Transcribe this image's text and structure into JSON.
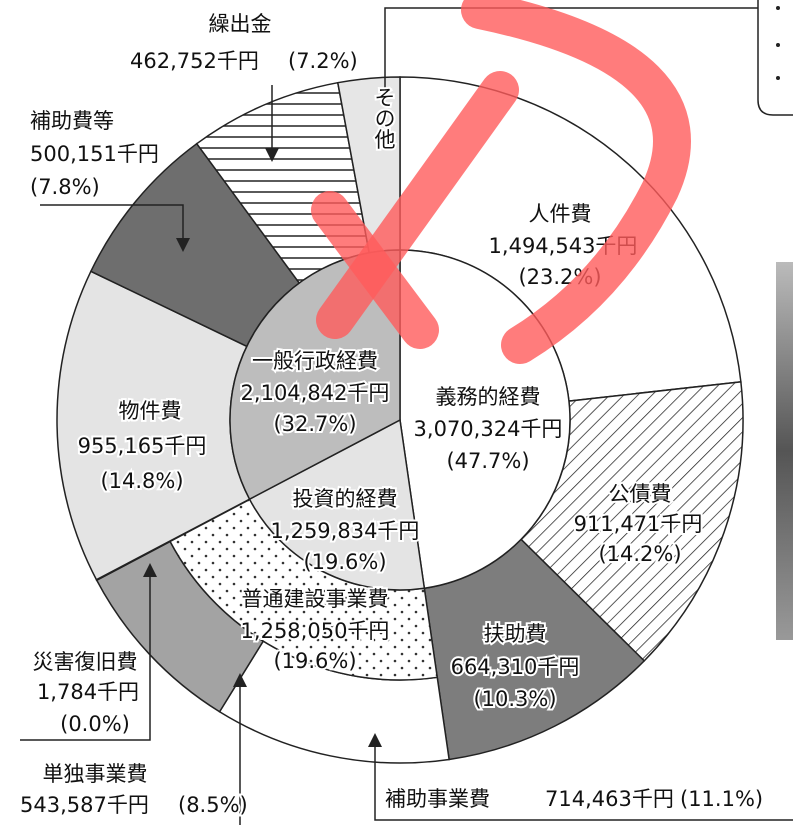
{
  "chart_data": {
    "type": "sunburst",
    "inner": [
      {
        "name": "義務的経費",
        "value": 3070324,
        "value_label": "3,070,324千円",
        "percent_label": "(47.7%)",
        "color": "#ffffff"
      },
      {
        "name": "投資的経費",
        "value": 1259834,
        "value_label": "1,259,834千円",
        "percent_label": "(19.6%)",
        "color": "#e4e4e4"
      },
      {
        "name": "一般行政経費",
        "value": 2104842,
        "value_label": "2,104,842千円",
        "percent_label": "(32.7%)",
        "color": "#bdbdbd"
      }
    ],
    "middle": [
      {
        "name": "普通建設事業費",
        "value": 1258050,
        "value_label": "1,258,050千円",
        "percent_label": "(19.6%)",
        "color": "#ffffff",
        "pattern": "dots",
        "parent": 1
      }
    ],
    "outer": [
      {
        "name": "人件費",
        "value": 1494543,
        "value_label": "1,494,543千円",
        "percent_label": "(23.2%)",
        "color": "#ffffff"
      },
      {
        "name": "公債費",
        "value": 911471,
        "value_label": "911,471千円",
        "percent_label": "(14.2%)",
        "color": "#ffffff",
        "pattern": "hatch"
      },
      {
        "name": "扶助費",
        "value": 664310,
        "value_label": "664,310千円",
        "percent_label": "(10.3%)",
        "color": "#7d7d7d"
      },
      {
        "name": "補助事業費",
        "value": 714463,
        "value_label": "714,463千円",
        "percent_label": "(11.1%)",
        "color": "#ffffff",
        "in_middle": true
      },
      {
        "name": "単独事業費",
        "value": 543587,
        "value_label": "543,587千円",
        "percent_label": "(8.5%)",
        "color": "#a3a3a3",
        "in_middle": true
      },
      {
        "name": "災害復旧費",
        "value": 1784,
        "value_label": "1,784千円",
        "percent_label": "(0.0%)",
        "color": "#ffffff"
      },
      {
        "name": "物件費",
        "value": 955165,
        "value_label": "955,165千円",
        "percent_label": "(14.8%)",
        "color": "#e4e4e4"
      },
      {
        "name": "補助費等",
        "value": 500151,
        "value_label": "500,151千円",
        "percent_label": "(7.8%)",
        "color": "#6e6e6e"
      },
      {
        "name": "繰出金",
        "value": 462752,
        "value_label": "462,752千円",
        "percent_label": "(7.2%)",
        "color": "#ffffff",
        "pattern": "lines"
      },
      {
        "name": "その他",
        "value": 186774,
        "color": "#e6e6e6"
      }
    ]
  }
}
